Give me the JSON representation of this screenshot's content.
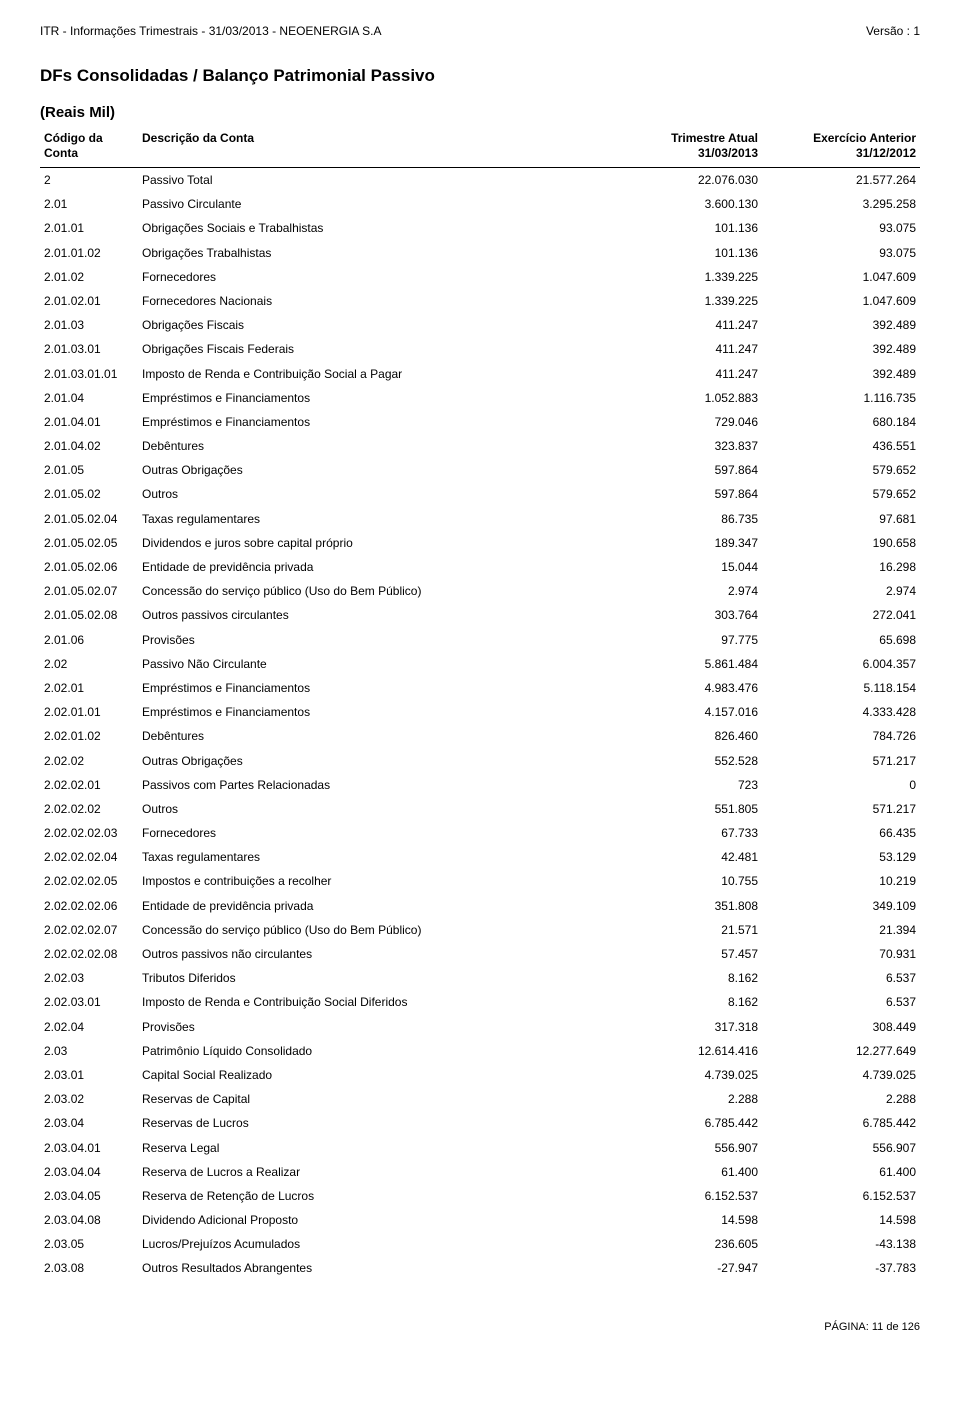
{
  "header": {
    "left": "ITR - Informações Trimestrais - 31/03/2013 - NEOENERGIA S.A",
    "right": "Versão : 1"
  },
  "section_title": "DFs Consolidadas / Balanço Patrimonial Passivo",
  "subtitle": "(Reais Mil)",
  "columns": {
    "code_l1": "Código da",
    "code_l2": "Conta",
    "desc": "Descrição da Conta",
    "val1_l1": "Trimestre Atual",
    "val1_l2": "31/03/2013",
    "val2_l1": "Exercício Anterior",
    "val2_l2": "31/12/2012"
  },
  "rows": [
    {
      "c": "2",
      "d": "Passivo Total",
      "v1": "22.076.030",
      "v2": "21.577.264"
    },
    {
      "c": "2.01",
      "d": "Passivo Circulante",
      "v1": "3.600.130",
      "v2": "3.295.258"
    },
    {
      "c": "2.01.01",
      "d": "Obrigações Sociais e Trabalhistas",
      "v1": "101.136",
      "v2": "93.075"
    },
    {
      "c": "2.01.01.02",
      "d": "Obrigações Trabalhistas",
      "v1": "101.136",
      "v2": "93.075"
    },
    {
      "c": "2.01.02",
      "d": "Fornecedores",
      "v1": "1.339.225",
      "v2": "1.047.609"
    },
    {
      "c": "2.01.02.01",
      "d": "Fornecedores Nacionais",
      "v1": "1.339.225",
      "v2": "1.047.609"
    },
    {
      "c": "2.01.03",
      "d": "Obrigações Fiscais",
      "v1": "411.247",
      "v2": "392.489"
    },
    {
      "c": "2.01.03.01",
      "d": "Obrigações Fiscais Federais",
      "v1": "411.247",
      "v2": "392.489"
    },
    {
      "c": "2.01.03.01.01",
      "d": "Imposto de Renda e Contribuição Social a Pagar",
      "v1": "411.247",
      "v2": "392.489"
    },
    {
      "c": "2.01.04",
      "d": "Empréstimos e Financiamentos",
      "v1": "1.052.883",
      "v2": "1.116.735"
    },
    {
      "c": "2.01.04.01",
      "d": "Empréstimos e Financiamentos",
      "v1": "729.046",
      "v2": "680.184"
    },
    {
      "c": "2.01.04.02",
      "d": "Debêntures",
      "v1": "323.837",
      "v2": "436.551"
    },
    {
      "c": "2.01.05",
      "d": "Outras Obrigações",
      "v1": "597.864",
      "v2": "579.652"
    },
    {
      "c": "2.01.05.02",
      "d": "Outros",
      "v1": "597.864",
      "v2": "579.652"
    },
    {
      "c": "2.01.05.02.04",
      "d": "Taxas regulamentares",
      "v1": "86.735",
      "v2": "97.681"
    },
    {
      "c": "2.01.05.02.05",
      "d": "Dividendos e juros sobre capital próprio",
      "v1": "189.347",
      "v2": "190.658"
    },
    {
      "c": "2.01.05.02.06",
      "d": "Entidade de previdência privada",
      "v1": "15.044",
      "v2": "16.298"
    },
    {
      "c": "2.01.05.02.07",
      "d": "Concessão do serviço público (Uso do Bem Público)",
      "v1": "2.974",
      "v2": "2.974"
    },
    {
      "c": "2.01.05.02.08",
      "d": "Outros passivos circulantes",
      "v1": "303.764",
      "v2": "272.041"
    },
    {
      "c": "2.01.06",
      "d": "Provisões",
      "v1": "97.775",
      "v2": "65.698"
    },
    {
      "c": "2.02",
      "d": "Passivo Não Circulante",
      "v1": "5.861.484",
      "v2": "6.004.357"
    },
    {
      "c": "2.02.01",
      "d": "Empréstimos e Financiamentos",
      "v1": "4.983.476",
      "v2": "5.118.154"
    },
    {
      "c": "2.02.01.01",
      "d": "Empréstimos e Financiamentos",
      "v1": "4.157.016",
      "v2": "4.333.428"
    },
    {
      "c": "2.02.01.02",
      "d": "Debêntures",
      "v1": "826.460",
      "v2": "784.726"
    },
    {
      "c": "2.02.02",
      "d": "Outras Obrigações",
      "v1": "552.528",
      "v2": "571.217"
    },
    {
      "c": "2.02.02.01",
      "d": "Passivos com Partes Relacionadas",
      "v1": "723",
      "v2": "0"
    },
    {
      "c": "2.02.02.02",
      "d": "Outros",
      "v1": "551.805",
      "v2": "571.217"
    },
    {
      "c": "2.02.02.02.03",
      "d": "Fornecedores",
      "v1": "67.733",
      "v2": "66.435"
    },
    {
      "c": "2.02.02.02.04",
      "d": "Taxas regulamentares",
      "v1": "42.481",
      "v2": "53.129"
    },
    {
      "c": "2.02.02.02.05",
      "d": "Impostos e contribuições a recolher",
      "v1": "10.755",
      "v2": "10.219"
    },
    {
      "c": "2.02.02.02.06",
      "d": "Entidade de previdência privada",
      "v1": "351.808",
      "v2": "349.109"
    },
    {
      "c": "2.02.02.02.07",
      "d": "Concessão do serviço público (Uso do Bem Público)",
      "v1": "21.571",
      "v2": "21.394"
    },
    {
      "c": "2.02.02.02.08",
      "d": "Outros passivos não circulantes",
      "v1": "57.457",
      "v2": "70.931"
    },
    {
      "c": "2.02.03",
      "d": "Tributos Diferidos",
      "v1": "8.162",
      "v2": "6.537"
    },
    {
      "c": "2.02.03.01",
      "d": "Imposto de Renda e Contribuição Social Diferidos",
      "v1": "8.162",
      "v2": "6.537"
    },
    {
      "c": "2.02.04",
      "d": "Provisões",
      "v1": "317.318",
      "v2": "308.449"
    },
    {
      "c": "2.03",
      "d": "Patrimônio Líquido Consolidado",
      "v1": "12.614.416",
      "v2": "12.277.649"
    },
    {
      "c": "2.03.01",
      "d": "Capital Social Realizado",
      "v1": "4.739.025",
      "v2": "4.739.025"
    },
    {
      "c": "2.03.02",
      "d": "Reservas de Capital",
      "v1": "2.288",
      "v2": "2.288"
    },
    {
      "c": "2.03.04",
      "d": "Reservas de Lucros",
      "v1": "6.785.442",
      "v2": "6.785.442"
    },
    {
      "c": "2.03.04.01",
      "d": "Reserva Legal",
      "v1": "556.907",
      "v2": "556.907"
    },
    {
      "c": "2.03.04.04",
      "d": "Reserva de Lucros a Realizar",
      "v1": "61.400",
      "v2": "61.400"
    },
    {
      "c": "2.03.04.05",
      "d": "Reserva de Retenção de Lucros",
      "v1": "6.152.537",
      "v2": "6.152.537"
    },
    {
      "c": "2.03.04.08",
      "d": "Dividendo Adicional Proposto",
      "v1": "14.598",
      "v2": "14.598"
    },
    {
      "c": "2.03.05",
      "d": "Lucros/Prejuízos Acumulados",
      "v1": "236.605",
      "v2": "-43.138"
    },
    {
      "c": "2.03.08",
      "d": "Outros Resultados Abrangentes",
      "v1": "-27.947",
      "v2": "-37.783"
    }
  ],
  "footer": "PÁGINA: 11 de 126"
}
